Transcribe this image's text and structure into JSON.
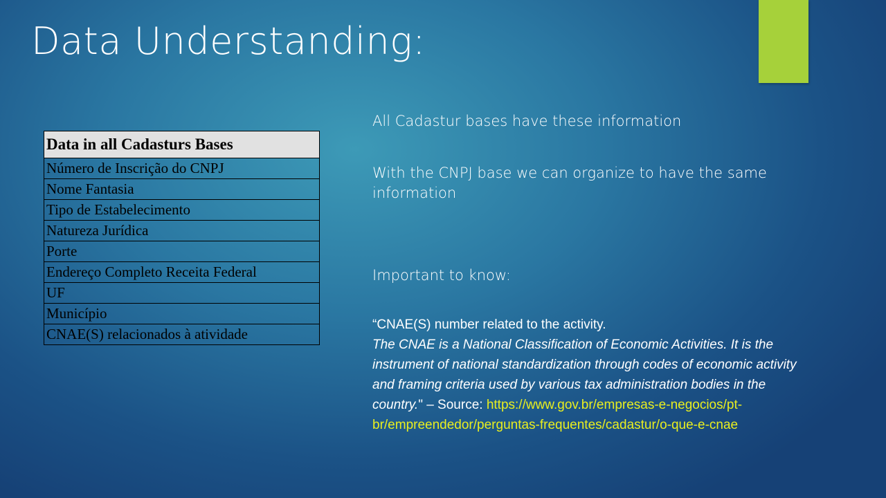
{
  "slide": {
    "title": "Data Understanding:",
    "accent_color": "#a6d13a"
  },
  "table": {
    "header": "Data in all Cadasturs Bases",
    "rows": [
      "Número de Inscrição do CNPJ",
      "Nome Fantasia",
      "Tipo de Estabelecimento",
      "Natureza Jurídica",
      "Porte",
      "Endereço Completo Receita Federal",
      "UF",
      "Município",
      "CNAE(S) relacionados à atividade"
    ]
  },
  "right": {
    "line1": "All Cadastur bases have these information",
    "line2": "With the CNPJ base we can organize to have the same information",
    "line3": "Important to know:",
    "quote_intro": "“CNAE(S) number related to the activity.",
    "quote_italic": "The CNAE is a National Classification of Economic Activities. It is the instrument of national standardization through codes of economic activity and framing criteria used by various tax administration bodies in the country.",
    "quote_close": "\" – Source: ",
    "source_url": "https://www.gov.br/empresas-e-negocios/pt-br/empreendedor/perguntas-frequentes/cadastur/o-que-e-cnae"
  }
}
